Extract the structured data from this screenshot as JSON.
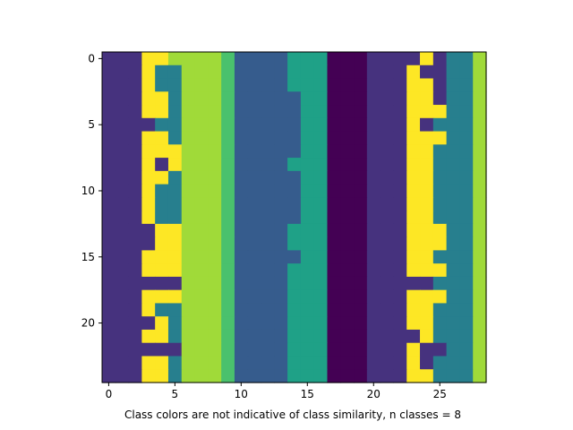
{
  "chart_data": {
    "type": "heatmap",
    "title": "",
    "xlabel": "Class colors are not indicative of class similarity, n classes = 8",
    "ylabel": "",
    "n_classes": 8,
    "colormap": "viridis",
    "class_colors": [
      "#440154",
      "#46327e",
      "#365c8d",
      "#277f8e",
      "#1fa187",
      "#4ac16d",
      "#a0da39",
      "#fde725"
    ],
    "xlim": [
      -0.5,
      28.5
    ],
    "ylim": [
      24.5,
      -0.5
    ],
    "xticks": [
      0,
      5,
      10,
      15,
      20,
      25
    ],
    "yticks": [
      0,
      5,
      10,
      15,
      20
    ],
    "grid": false,
    "row_template": [
      1,
      1,
      1,
      "a",
      "b",
      "c",
      6,
      6,
      6,
      5,
      2,
      2,
      2,
      2,
      "d",
      "e",
      "e",
      0,
      0,
      0,
      1,
      1,
      1,
      "f",
      "g",
      "h",
      "i",
      "i",
      6
    ],
    "rows": [
      {
        "a": 7,
        "b": 7,
        "c": 6,
        "d": 4,
        "e": 4,
        "f": 1,
        "g": 7,
        "h": 1,
        "i": 3
      },
      {
        "a": 7,
        "b": 3,
        "c": 3,
        "d": 4,
        "e": 4,
        "f": 7,
        "g": 1,
        "h": 1,
        "i": 3
      },
      {
        "a": 7,
        "b": 3,
        "c": 3,
        "d": 4,
        "e": 4,
        "f": 7,
        "g": 7,
        "h": 1,
        "i": 3
      },
      {
        "a": 7,
        "b": 7,
        "c": 3,
        "d": 2,
        "e": 4,
        "f": 7,
        "g": 7,
        "h": 1,
        "i": 3
      },
      {
        "a": 7,
        "b": 7,
        "c": 3,
        "d": 2,
        "e": 4,
        "f": 7,
        "g": 7,
        "h": 7,
        "i": 3
      },
      {
        "a": 1,
        "b": 3,
        "c": 3,
        "d": 2,
        "e": 4,
        "f": 7,
        "g": 1,
        "h": 3,
        "i": 3
      },
      {
        "a": 7,
        "b": 7,
        "c": 3,
        "d": 2,
        "e": 4,
        "f": 7,
        "g": 7,
        "h": 7,
        "i": 3
      },
      {
        "a": 7,
        "b": 7,
        "c": 7,
        "d": 2,
        "e": 4,
        "f": 7,
        "g": 7,
        "h": 3,
        "i": 3
      },
      {
        "a": 7,
        "b": 1,
        "c": 7,
        "d": 4,
        "e": 4,
        "f": 7,
        "g": 7,
        "h": 3,
        "i": 3
      },
      {
        "a": 7,
        "b": 7,
        "c": 3,
        "d": 2,
        "e": 4,
        "f": 7,
        "g": 7,
        "h": 3,
        "i": 3
      },
      {
        "a": 7,
        "b": 3,
        "c": 3,
        "d": 2,
        "e": 4,
        "f": 7,
        "g": 7,
        "h": 3,
        "i": 3
      },
      {
        "a": 7,
        "b": 3,
        "c": 3,
        "d": 2,
        "e": 4,
        "f": 7,
        "g": 7,
        "h": 3,
        "i": 3
      },
      {
        "a": 7,
        "b": 3,
        "c": 3,
        "d": 2,
        "e": 4,
        "f": 7,
        "g": 7,
        "h": 3,
        "i": 3
      },
      {
        "a": 1,
        "b": 7,
        "c": 7,
        "d": 4,
        "e": 4,
        "f": 7,
        "g": 7,
        "h": 7,
        "i": 3
      },
      {
        "a": 1,
        "b": 7,
        "c": 7,
        "d": 4,
        "e": 4,
        "f": 7,
        "g": 7,
        "h": 7,
        "i": 3
      },
      {
        "a": 7,
        "b": 7,
        "c": 7,
        "d": 2,
        "e": 4,
        "f": 7,
        "g": 7,
        "h": 3,
        "i": 3
      },
      {
        "a": 7,
        "b": 7,
        "c": 7,
        "d": 4,
        "e": 4,
        "f": 7,
        "g": 7,
        "h": 7,
        "i": 3
      },
      {
        "a": 1,
        "b": 1,
        "c": 1,
        "d": 4,
        "e": 4,
        "f": 1,
        "g": 1,
        "h": 3,
        "i": 3
      },
      {
        "a": 7,
        "b": 7,
        "c": 7,
        "d": 4,
        "e": 4,
        "f": 7,
        "g": 7,
        "h": 7,
        "i": 3
      },
      {
        "a": 7,
        "b": 3,
        "c": 3,
        "d": 4,
        "e": 4,
        "f": 7,
        "g": 7,
        "h": 3,
        "i": 3
      },
      {
        "a": 1,
        "b": 7,
        "c": 3,
        "d": 4,
        "e": 4,
        "f": 7,
        "g": 7,
        "h": 3,
        "i": 3
      },
      {
        "a": 7,
        "b": 7,
        "c": 3,
        "d": 4,
        "e": 4,
        "f": 1,
        "g": 7,
        "h": 3,
        "i": 3
      },
      {
        "a": 1,
        "b": 1,
        "c": 1,
        "d": 4,
        "e": 4,
        "f": 7,
        "g": 1,
        "h": 1,
        "i": 3
      },
      {
        "a": 7,
        "b": 7,
        "c": 3,
        "d": 4,
        "e": 4,
        "f": 7,
        "g": 1,
        "h": 3,
        "i": 3
      },
      {
        "a": 7,
        "b": 7,
        "c": 3,
        "d": 4,
        "e": 4,
        "f": 7,
        "g": 7,
        "h": 3,
        "i": 3
      }
    ]
  }
}
